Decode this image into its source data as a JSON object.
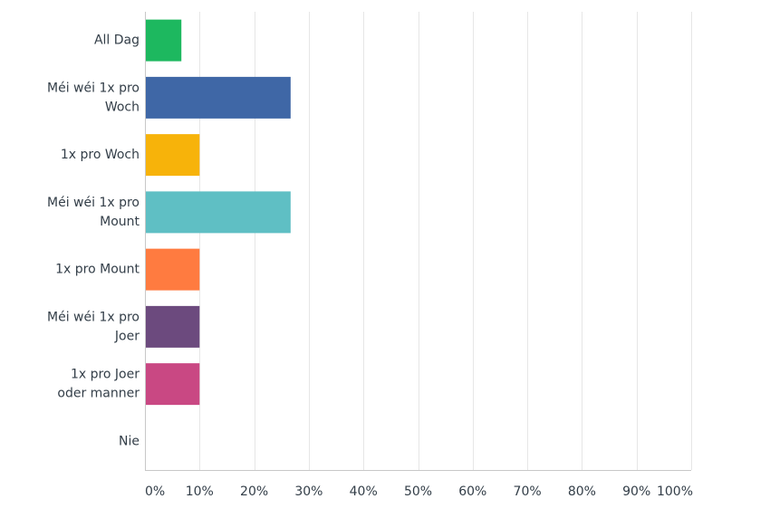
{
  "chart_data": {
    "type": "bar",
    "orientation": "horizontal",
    "categories": [
      [
        "All Dag"
      ],
      [
        "Méi wéi 1x pro",
        "Woch"
      ],
      [
        "1x pro Woch"
      ],
      [
        "Méi wéi 1x pro",
        "Mount"
      ],
      [
        "1x pro Mount"
      ],
      [
        "Méi wéi 1x pro",
        "Joer"
      ],
      [
        "1x pro Joer",
        "oder manner"
      ],
      [
        "Nie"
      ]
    ],
    "values": [
      6.67,
      26.67,
      10,
      26.67,
      10,
      10,
      10,
      0
    ],
    "colors": [
      "#1db85f",
      "#3f67a6",
      "#f7b30a",
      "#5fbfc4",
      "#ff7b40",
      "#6c4a7e",
      "#c94883",
      "#2e8b7a"
    ],
    "xlim": [
      0,
      100
    ],
    "x_ticks": [
      0,
      10,
      20,
      30,
      40,
      50,
      60,
      70,
      80,
      90,
      100
    ],
    "x_tick_labels": [
      "0%",
      "10%",
      "20%",
      "30%",
      "40%",
      "50%",
      "60%",
      "70%",
      "80%",
      "90%",
      "100%"
    ],
    "grid": true,
    "title": "",
    "xlabel": "",
    "ylabel": ""
  }
}
